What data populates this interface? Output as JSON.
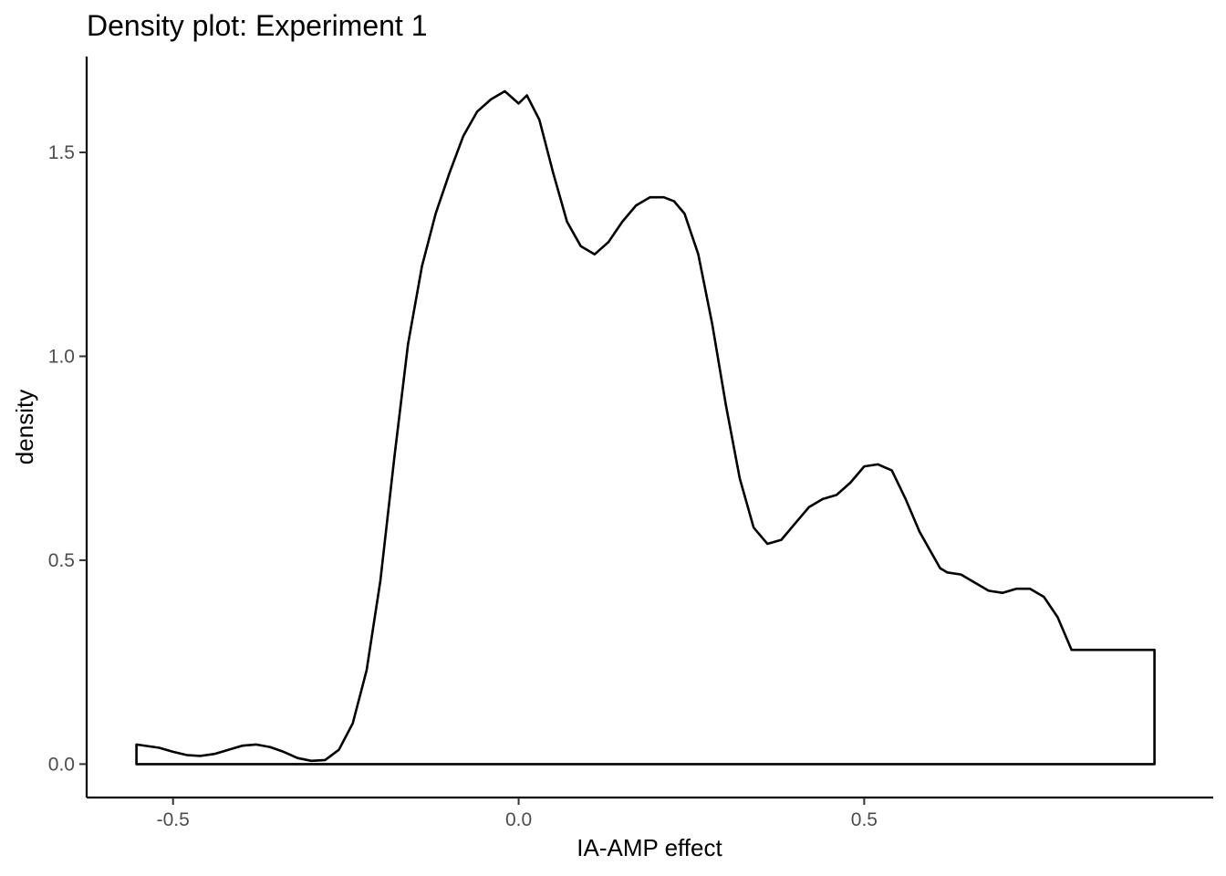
{
  "chart_data": {
    "type": "area",
    "title": "Density plot: Experiment 1",
    "xlabel": "IA-AMP effect",
    "ylabel": "density",
    "xlim": [
      -0.625,
      1.005
    ],
    "ylim": [
      -0.082,
      1.735
    ],
    "x_ticks": [
      -0.5,
      0.0,
      0.5
    ],
    "x_tick_labels": [
      "-0.5",
      "0.0",
      "0.5"
    ],
    "y_ticks": [
      0.0,
      0.5,
      1.0,
      1.5
    ],
    "y_tick_labels": [
      "0.0",
      "0.5",
      "1.0",
      "1.5"
    ],
    "grid": false,
    "legend": "none",
    "fill": "none",
    "line_color": "#000000",
    "series": [
      {
        "x": [
          -0.553,
          -0.52,
          -0.5,
          -0.48,
          -0.46,
          -0.44,
          -0.42,
          -0.4,
          -0.38,
          -0.36,
          -0.34,
          -0.32,
          -0.3,
          -0.28,
          -0.26,
          -0.24,
          -0.22,
          -0.2,
          -0.18,
          -0.16,
          -0.14,
          -0.12,
          -0.1,
          -0.08,
          -0.06,
          -0.04,
          -0.02,
          0.0,
          0.012,
          0.03,
          0.05,
          0.07,
          0.09,
          0.11,
          0.13,
          0.15,
          0.17,
          0.19,
          0.21,
          0.225,
          0.24,
          0.26,
          0.28,
          0.3,
          0.32,
          0.34,
          0.36,
          0.38,
          0.4,
          0.42,
          0.44,
          0.46,
          0.48,
          0.5,
          0.52,
          0.54,
          0.56,
          0.58,
          0.6,
          0.61,
          0.62,
          0.64,
          0.66,
          0.68,
          0.7,
          0.72,
          0.74,
          0.76,
          0.78,
          0.8,
          0.82,
          0.84,
          0.86,
          0.88,
          0.9,
          0.92
        ],
        "y": [
          0.048,
          0.04,
          0.03,
          0.022,
          0.02,
          0.025,
          0.035,
          0.045,
          0.048,
          0.042,
          0.03,
          0.015,
          0.008,
          0.01,
          0.035,
          0.1,
          0.23,
          0.45,
          0.75,
          1.03,
          1.22,
          1.35,
          1.45,
          1.54,
          1.6,
          1.63,
          1.65,
          1.62,
          1.64,
          1.58,
          1.45,
          1.33,
          1.27,
          1.25,
          1.28,
          1.33,
          1.37,
          1.39,
          1.39,
          1.38,
          1.35,
          1.25,
          1.08,
          0.88,
          0.7,
          0.58,
          0.54,
          0.55,
          0.59,
          0.63,
          0.65,
          0.66,
          0.69,
          0.73,
          0.735,
          0.72,
          0.65,
          0.57,
          0.51,
          0.48,
          0.47,
          0.465,
          0.445,
          0.425,
          0.42,
          0.43,
          0.43,
          0.41,
          0.36,
          0.28,
          0.28,
          0.28,
          0.28,
          0.28,
          0.28,
          0.28
        ]
      }
    ]
  }
}
